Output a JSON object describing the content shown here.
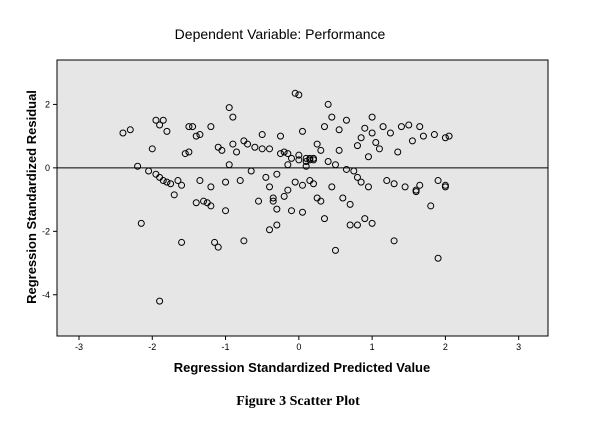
{
  "caption": "Figure 3 Scatter Plot",
  "chart_data": {
    "type": "scatter",
    "title": "Dependent Variable: Performance",
    "xlabel": "Regression Standardized Predicted Value",
    "ylabel": "Regression Standardized Residual",
    "xlim": [
      -3.3,
      3.4
    ],
    "ylim": [
      -5.3,
      3.4
    ],
    "xticks": [
      -3,
      -2,
      -1,
      0,
      1,
      2,
      3
    ],
    "yticks": [
      2,
      0,
      -2,
      -4
    ],
    "reference_line_y": 0,
    "grid": false,
    "plot_background": "#e6e6e6",
    "marker_color": "#000000",
    "points": [
      [
        -2.4,
        1.1
      ],
      [
        -2.3,
        1.2
      ],
      [
        -2.2,
        0.05
      ],
      [
        -2.15,
        -1.75
      ],
      [
        -2.05,
        -0.1
      ],
      [
        -2.0,
        0.6
      ],
      [
        -1.95,
        1.5
      ],
      [
        -1.9,
        1.35
      ],
      [
        -1.85,
        1.5
      ],
      [
        -1.8,
        1.15
      ],
      [
        -1.95,
        -0.2
      ],
      [
        -1.9,
        -0.3
      ],
      [
        -1.85,
        -0.4
      ],
      [
        -1.8,
        -0.45
      ],
      [
        -1.75,
        -0.5
      ],
      [
        -1.7,
        -0.85
      ],
      [
        -1.65,
        -0.4
      ],
      [
        -1.6,
        -0.55
      ],
      [
        -1.6,
        -2.35
      ],
      [
        -1.55,
        0.45
      ],
      [
        -1.5,
        0.5
      ],
      [
        -1.5,
        1.3
      ],
      [
        -1.45,
        1.3
      ],
      [
        -1.4,
        1.0
      ],
      [
        -1.35,
        -0.4
      ],
      [
        -1.35,
        1.05
      ],
      [
        -1.3,
        -1.05
      ],
      [
        -1.25,
        -1.1
      ],
      [
        -1.2,
        -1.2
      ],
      [
        -1.2,
        -0.6
      ],
      [
        -1.2,
        1.3
      ],
      [
        -1.15,
        -2.35
      ],
      [
        -1.1,
        -2.5
      ],
      [
        -1.1,
        0.65
      ],
      [
        -1.05,
        0.55
      ],
      [
        -1.0,
        -0.45
      ],
      [
        -1.0,
        -1.35
      ],
      [
        -0.95,
        0.1
      ],
      [
        -0.95,
        1.9
      ],
      [
        -0.9,
        1.6
      ],
      [
        -0.9,
        0.75
      ],
      [
        -0.85,
        0.5
      ],
      [
        -0.8,
        -0.4
      ],
      [
        -0.75,
        -2.3
      ],
      [
        -0.75,
        0.85
      ],
      [
        -0.7,
        0.75
      ],
      [
        -0.65,
        -0.1
      ],
      [
        -0.6,
        0.65
      ],
      [
        -0.55,
        -1.05
      ],
      [
        -0.5,
        0.6
      ],
      [
        -0.5,
        1.05
      ],
      [
        -0.45,
        -0.3
      ],
      [
        -0.4,
        -0.6
      ],
      [
        -0.4,
        0.6
      ],
      [
        -0.4,
        -1.95
      ],
      [
        -0.35,
        -1.05
      ],
      [
        -0.35,
        -0.95
      ],
      [
        -0.3,
        -1.3
      ],
      [
        -0.3,
        -1.8
      ],
      [
        -0.3,
        -0.2
      ],
      [
        -0.25,
        1.0
      ],
      [
        -0.25,
        0.45
      ],
      [
        -0.2,
        0.5
      ],
      [
        -0.2,
        -0.9
      ],
      [
        -0.15,
        -0.7
      ],
      [
        -0.15,
        0.45
      ],
      [
        -0.15,
        0.1
      ],
      [
        -0.1,
        0.3
      ],
      [
        -0.1,
        -1.35
      ],
      [
        -0.05,
        -0.45
      ],
      [
        -0.05,
        2.35
      ],
      [
        0.0,
        2.3
      ],
      [
        0.0,
        0.4
      ],
      [
        0.0,
        0.25
      ],
      [
        0.05,
        1.15
      ],
      [
        0.05,
        -1.4
      ],
      [
        0.05,
        -0.55
      ],
      [
        0.1,
        0.3
      ],
      [
        0.1,
        0.2
      ],
      [
        0.1,
        0.05
      ],
      [
        0.15,
        0.3
      ],
      [
        0.15,
        0.25
      ],
      [
        0.15,
        -0.4
      ],
      [
        0.2,
        0.25
      ],
      [
        0.2,
        0.3
      ],
      [
        0.2,
        -0.5
      ],
      [
        0.25,
        0.75
      ],
      [
        0.25,
        -0.95
      ],
      [
        0.3,
        0.55
      ],
      [
        0.3,
        -1.05
      ],
      [
        0.35,
        -1.6
      ],
      [
        0.35,
        1.3
      ],
      [
        0.4,
        2.0
      ],
      [
        0.4,
        0.2
      ],
      [
        0.45,
        1.6
      ],
      [
        0.45,
        -0.6
      ],
      [
        0.5,
        0.1
      ],
      [
        0.5,
        -2.6
      ],
      [
        0.55,
        0.55
      ],
      [
        0.55,
        1.2
      ],
      [
        0.6,
        -0.95
      ],
      [
        0.65,
        1.5
      ],
      [
        0.65,
        -0.05
      ],
      [
        0.7,
        -1.15
      ],
      [
        0.7,
        -1.8
      ],
      [
        0.75,
        -0.1
      ],
      [
        0.8,
        -0.3
      ],
      [
        0.8,
        0.7
      ],
      [
        0.8,
        -1.8
      ],
      [
        0.85,
        -0.45
      ],
      [
        0.85,
        0.95
      ],
      [
        0.9,
        1.25
      ],
      [
        0.9,
        -1.6
      ],
      [
        0.95,
        0.35
      ],
      [
        0.95,
        -0.6
      ],
      [
        1.0,
        1.1
      ],
      [
        1.0,
        -1.75
      ],
      [
        1.0,
        1.6
      ],
      [
        1.05,
        0.8
      ],
      [
        1.1,
        0.6
      ],
      [
        1.15,
        1.3
      ],
      [
        1.2,
        -0.4
      ],
      [
        1.25,
        1.1
      ],
      [
        1.3,
        -0.5
      ],
      [
        1.3,
        -2.3
      ],
      [
        1.35,
        0.5
      ],
      [
        1.4,
        1.3
      ],
      [
        1.45,
        -0.6
      ],
      [
        1.5,
        1.35
      ],
      [
        1.55,
        0.85
      ],
      [
        1.6,
        -0.7
      ],
      [
        1.6,
        -0.75
      ],
      [
        1.65,
        1.3
      ],
      [
        1.65,
        -0.55
      ],
      [
        1.7,
        1.0
      ],
      [
        1.8,
        -1.2
      ],
      [
        1.85,
        1.05
      ],
      [
        1.9,
        -0.4
      ],
      [
        1.9,
        -2.85
      ],
      [
        2.0,
        0.95
      ],
      [
        2.0,
        -0.6
      ],
      [
        2.05,
        1.0
      ],
      [
        2.0,
        -0.55
      ],
      [
        -1.9,
        -4.2
      ],
      [
        -1.4,
        -1.1
      ]
    ]
  }
}
